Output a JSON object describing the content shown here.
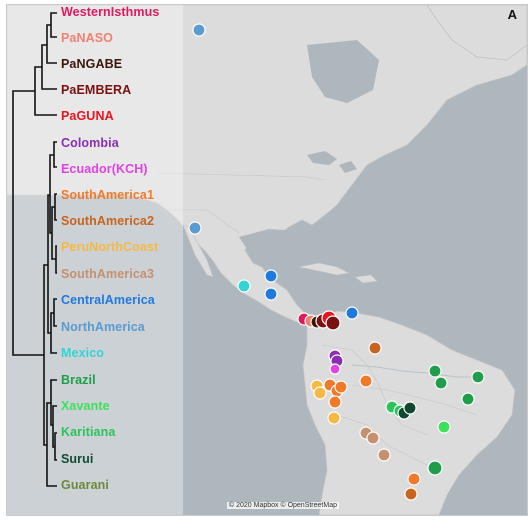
{
  "panel_label": "A",
  "attribution": "© 2020 Mapbox © OpenStreetMap",
  "clades": [
    {
      "name": "WesternIsthmus",
      "color": "#e0195f"
    },
    {
      "name": "PaNASO",
      "color": "#f08070"
    },
    {
      "name": "PaNGABE",
      "color": "#3a1608"
    },
    {
      "name": "PaEMBERA",
      "color": "#7a1010"
    },
    {
      "name": "PaGUNA",
      "color": "#e8141e"
    },
    {
      "name": "Colombia",
      "color": "#8a2db3"
    },
    {
      "name": "Ecuador(KCH)",
      "color": "#e043e0"
    },
    {
      "name": "SouthAmerica1",
      "color": "#f07a28"
    },
    {
      "name": "SouthAmerica2",
      "color": "#c8641e"
    },
    {
      "name": "PeruNorthCoast",
      "color": "#f5b944"
    },
    {
      "name": "SouthAmerica3",
      "color": "#c49070"
    },
    {
      "name": "CentralAmerica",
      "color": "#1f7ae0"
    },
    {
      "name": "NorthAmerica",
      "color": "#5a9bd0"
    },
    {
      "name": "Mexico",
      "color": "#32d4d4"
    },
    {
      "name": "Brazil",
      "color": "#1e9e4a"
    },
    {
      "name": "Xavante",
      "color": "#3ce05a"
    },
    {
      "name": "Karitiana",
      "color": "#2bc45a"
    },
    {
      "name": "Surui",
      "color": "#0f4a30"
    },
    {
      "name": "Guarani",
      "color": "#6b8a3a"
    }
  ]
}
